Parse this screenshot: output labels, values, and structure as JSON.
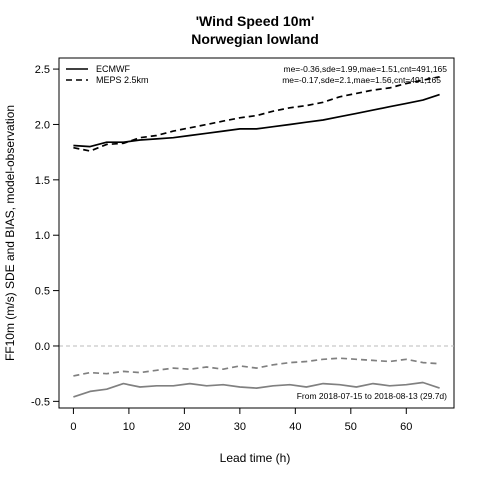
{
  "chart_data": {
    "type": "line",
    "title": "'Wind Speed 10m'",
    "subtitle": "Norwegian lowland",
    "xlabel": "Lead time (h)",
    "ylabel": "FF10m (m/s) SDE and BIAS, model-observation",
    "xlim": [
      -2.6,
      68.6
    ],
    "ylim": [
      -0.56,
      2.6
    ],
    "x_ticks": [
      0,
      10,
      20,
      30,
      40,
      50,
      60
    ],
    "y_ticks": [
      -0.5,
      0.0,
      0.5,
      1.0,
      1.5,
      2.0,
      2.5
    ],
    "y_tick_labels": [
      "-0.5",
      "0.0",
      "0.5",
      "1.0",
      "1.5",
      "2.0",
      "2.5"
    ],
    "legend_position": "top-left",
    "zero_line": {
      "y": 0.0,
      "color": "#bbbbbb"
    },
    "x": [
      0,
      3,
      6,
      9,
      12,
      15,
      18,
      21,
      24,
      27,
      30,
      33,
      36,
      39,
      42,
      45,
      48,
      51,
      54,
      57,
      60,
      63,
      66
    ],
    "series": [
      {
        "name": "ECMWF",
        "role": "SDE",
        "style": "solid",
        "color": "#000000",
        "values": [
          1.81,
          1.8,
          1.84,
          1.84,
          1.86,
          1.87,
          1.88,
          1.9,
          1.92,
          1.94,
          1.96,
          1.96,
          1.98,
          2.0,
          2.02,
          2.04,
          2.07,
          2.1,
          2.13,
          2.16,
          2.19,
          2.22,
          2.27
        ],
        "stats": "me=-0.36,sde=1.99,mae=1.51,cnt=491,165"
      },
      {
        "name": "MEPS 2.5km",
        "role": "SDE",
        "style": "dashed",
        "color": "#000000",
        "values": [
          1.79,
          1.76,
          1.82,
          1.83,
          1.88,
          1.9,
          1.94,
          1.97,
          2.0,
          2.03,
          2.06,
          2.08,
          2.12,
          2.15,
          2.17,
          2.2,
          2.25,
          2.28,
          2.31,
          2.33,
          2.37,
          2.4,
          2.43
        ],
        "stats": "me=-0.17,sde=2.1,mae=1.56,cnt=491,165"
      },
      {
        "name": "ECMWF",
        "role": "BIAS",
        "style": "solid",
        "color": "#808080",
        "values": [
          -0.46,
          -0.41,
          -0.39,
          -0.34,
          -0.37,
          -0.36,
          -0.36,
          -0.34,
          -0.36,
          -0.35,
          -0.37,
          -0.38,
          -0.36,
          -0.35,
          -0.37,
          -0.34,
          -0.35,
          -0.37,
          -0.34,
          -0.36,
          -0.35,
          -0.33,
          -0.38
        ]
      },
      {
        "name": "MEPS 2.5km",
        "role": "BIAS",
        "style": "dashed",
        "color": "#808080",
        "values": [
          -0.27,
          -0.24,
          -0.25,
          -0.23,
          -0.24,
          -0.22,
          -0.2,
          -0.21,
          -0.19,
          -0.21,
          -0.18,
          -0.2,
          -0.17,
          -0.15,
          -0.14,
          -0.12,
          -0.11,
          -0.12,
          -0.13,
          -0.14,
          -0.12,
          -0.15,
          -0.16
        ]
      }
    ],
    "annotation": "From 2018-07-15 to 2018-08-13 (29.7d)"
  }
}
